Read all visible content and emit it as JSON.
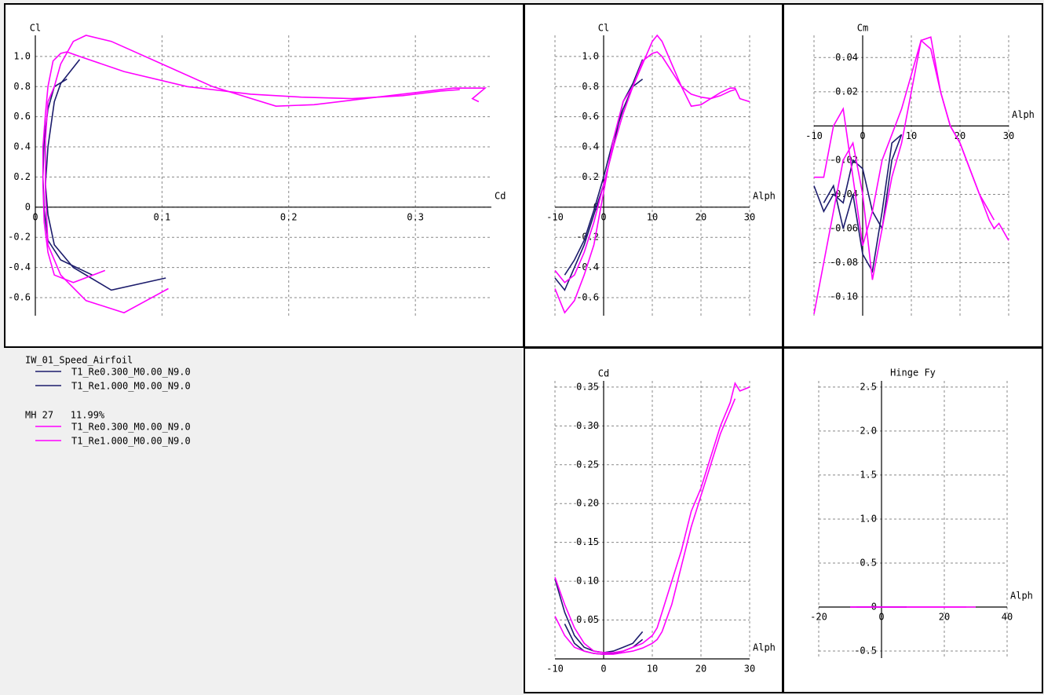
{
  "chart_data": [
    {
      "type": "line",
      "x_label": "Cd",
      "y_label": "Cl",
      "xlim": [
        0,
        0.36
      ],
      "ylim": [
        -0.72,
        1.14
      ],
      "xticks": [
        0,
        0.1,
        0.2,
        0.3
      ],
      "yticks": [
        {
          "value": 1,
          "label": "1.0"
        },
        0.8,
        0.6,
        0.4,
        0.2,
        0,
        -0.2,
        -0.4,
        -0.6
      ],
      "series": [
        {
          "color": "#1c1c6c",
          "x": [
            0.103,
            0.06,
            0.03,
            0.015,
            0.01,
            0.008,
            0.01,
            0.015,
            0.02,
            0.035
          ],
          "values": [
            -0.47,
            -0.55,
            -0.4,
            -0.25,
            -0.05,
            0.15,
            0.4,
            0.7,
            0.82,
            0.98
          ]
        },
        {
          "color": "#1c1c6c",
          "x": [
            0.045,
            0.02,
            0.01,
            0.007,
            0.006,
            0.007,
            0.01,
            0.015,
            0.025
          ],
          "values": [
            -0.45,
            -0.35,
            -0.22,
            -0.02,
            0.2,
            0.45,
            0.65,
            0.8,
            0.85
          ]
        },
        {
          "color": "#ff00ff",
          "x": [
            0.105,
            0.07,
            0.04,
            0.02,
            0.01,
            0.008,
            0.008,
            0.01,
            0.015,
            0.02,
            0.03,
            0.04,
            0.06,
            0.1,
            0.14,
            0.19,
            0.22,
            0.26,
            0.3,
            0.33,
            0.355,
            0.345,
            0.35
          ],
          "values": [
            -0.54,
            -0.7,
            -0.62,
            -0.45,
            -0.25,
            0.1,
            0.45,
            0.7,
            0.8,
            0.95,
            1.1,
            1.14,
            1.1,
            0.95,
            0.8,
            0.67,
            0.68,
            0.72,
            0.76,
            0.79,
            0.79,
            0.72,
            0.7
          ]
        },
        {
          "color": "#ff00ff",
          "x": [
            0.055,
            0.03,
            0.015,
            0.01,
            0.007,
            0.006,
            0.006,
            0.008,
            0.01,
            0.014,
            0.02,
            0.025,
            0.035,
            0.07,
            0.12,
            0.17,
            0.21,
            0.25,
            0.29,
            0.32,
            0.335
          ],
          "values": [
            -0.42,
            -0.5,
            -0.45,
            -0.3,
            -0.1,
            0.15,
            0.4,
            0.62,
            0.8,
            0.97,
            1.02,
            1.03,
            1.0,
            0.9,
            0.8,
            0.75,
            0.73,
            0.72,
            0.74,
            0.77,
            0.78
          ]
        }
      ]
    },
    {
      "type": "line",
      "x_label": "Alph",
      "y_label": "Cl",
      "xlim": [
        -10,
        30
      ],
      "ylim": [
        -0.72,
        1.14
      ],
      "xticks": [
        -10,
        0,
        10,
        20,
        30
      ],
      "yticks": [
        {
          "value": 1,
          "label": "1.0"
        },
        0.8,
        0.6,
        0.4,
        0.2,
        0,
        -0.2,
        -0.4,
        -0.6
      ],
      "series": [
        {
          "color": "#1c1c6c",
          "x": [
            -10,
            -8,
            -6,
            -4,
            -2,
            0,
            2,
            4,
            6,
            8
          ],
          "values": [
            -0.47,
            -0.55,
            -0.4,
            -0.25,
            -0.05,
            0.15,
            0.4,
            0.7,
            0.82,
            0.98
          ]
        },
        {
          "color": "#1c1c6c",
          "x": [
            -8,
            -6,
            -4,
            -2,
            0,
            2,
            4,
            6,
            8
          ],
          "values": [
            -0.45,
            -0.35,
            -0.22,
            -0.02,
            0.2,
            0.45,
            0.65,
            0.8,
            0.85
          ]
        },
        {
          "color": "#ff00ff",
          "x": [
            -10,
            -8,
            -6,
            -4,
            -2,
            0,
            2,
            4,
            6,
            8,
            10,
            11,
            12,
            14,
            16,
            18,
            20,
            22,
            24,
            26,
            27,
            28,
            30
          ],
          "values": [
            -0.54,
            -0.7,
            -0.62,
            -0.45,
            -0.25,
            0.1,
            0.45,
            0.7,
            0.8,
            0.95,
            1.1,
            1.14,
            1.1,
            0.95,
            0.8,
            0.67,
            0.68,
            0.72,
            0.76,
            0.79,
            0.79,
            0.72,
            0.7
          ]
        },
        {
          "color": "#ff00ff",
          "x": [
            -10,
            -8,
            -6,
            -4,
            -2,
            0,
            2,
            4,
            6,
            8,
            10,
            11,
            12,
            14,
            16,
            18,
            20,
            22,
            24,
            26,
            27
          ],
          "values": [
            -0.42,
            -0.5,
            -0.45,
            -0.3,
            -0.1,
            0.15,
            0.4,
            0.62,
            0.8,
            0.97,
            1.02,
            1.03,
            1.0,
            0.9,
            0.8,
            0.75,
            0.73,
            0.72,
            0.74,
            0.77,
            0.78
          ]
        }
      ]
    },
    {
      "type": "line",
      "x_label": "Alph",
      "y_label": "Cm",
      "xlim": [
        -10,
        30
      ],
      "ylim": [
        -0.111,
        0.053
      ],
      "xticks": [
        -10,
        0,
        10,
        20,
        30
      ],
      "yticks": [
        0.04,
        0.02,
        -0.02,
        -0.04,
        -0.06,
        -0.08,
        {
          "value": -0.1,
          "label": "-0.10"
        }
      ],
      "series": [
        {
          "color": "#1c1c6c",
          "x": [
            -10,
            -8,
            -6,
            -4,
            -2,
            0,
            2,
            4,
            6,
            8
          ],
          "values": [
            -0.035,
            -0.05,
            -0.04,
            -0.045,
            -0.02,
            -0.025,
            -0.05,
            -0.06,
            -0.02,
            -0.005
          ]
        },
        {
          "color": "#1c1c6c",
          "x": [
            -8,
            -6,
            -4,
            -2,
            0,
            2,
            4,
            6,
            8
          ],
          "values": [
            -0.045,
            -0.035,
            -0.06,
            -0.04,
            -0.075,
            -0.085,
            -0.05,
            -0.01,
            -0.005
          ]
        },
        {
          "color": "#ff00ff",
          "x": [
            -10,
            -8,
            -6,
            -4,
            -2,
            0,
            2,
            4,
            6,
            8,
            10,
            11,
            12,
            14,
            16,
            18,
            20,
            22,
            24,
            26,
            27,
            28,
            30
          ],
          "values": [
            -0.11,
            -0.08,
            -0.05,
            -0.02,
            -0.01,
            -0.04,
            -0.09,
            -0.06,
            -0.03,
            -0.01,
            0.02,
            0.035,
            0.05,
            0.052,
            0.02,
            0.0,
            -0.01,
            -0.025,
            -0.04,
            -0.055,
            -0.06,
            -0.057,
            -0.067
          ]
        },
        {
          "color": "#ff00ff",
          "x": [
            -10,
            -8,
            -6,
            -4,
            -2,
            0,
            2,
            4,
            6,
            8,
            10,
            11,
            12,
            14,
            16,
            18,
            20,
            22,
            24,
            26,
            27
          ],
          "values": [
            -0.03,
            -0.03,
            0.0,
            0.01,
            -0.03,
            -0.07,
            -0.05,
            -0.02,
            -0.005,
            0.01,
            0.03,
            0.04,
            0.05,
            0.045,
            0.02,
            0.0,
            -0.01,
            -0.025,
            -0.04,
            -0.05,
            -0.055
          ]
        }
      ]
    },
    {
      "type": "line",
      "x_label": "Alph",
      "y_label": "Cd",
      "xlim": [
        -10,
        30
      ],
      "ylim": [
        0,
        0.358
      ],
      "xticks": [
        -10,
        0,
        10,
        20,
        30
      ],
      "yticks": [
        0.05,
        {
          "value": 0.1,
          "label": "0.10"
        },
        0.15,
        {
          "value": 0.2,
          "label": "0.20"
        },
        0.25,
        {
          "value": 0.3,
          "label": "0.30"
        },
        0.35
      ],
      "series": [
        {
          "color": "#1c1c6c",
          "x": [
            -10,
            -8,
            -6,
            -4,
            -2,
            0,
            2,
            4,
            6,
            8
          ],
          "values": [
            0.103,
            0.06,
            0.03,
            0.015,
            0.01,
            0.008,
            0.01,
            0.015,
            0.02,
            0.035
          ]
        },
        {
          "color": "#1c1c6c",
          "x": [
            -8,
            -6,
            -4,
            -2,
            0,
            2,
            4,
            6,
            8
          ],
          "values": [
            0.045,
            0.02,
            0.01,
            0.007,
            0.006,
            0.007,
            0.01,
            0.015,
            0.025
          ]
        },
        {
          "color": "#ff00ff",
          "x": [
            -10,
            -8,
            -6,
            -4,
            -2,
            0,
            2,
            4,
            6,
            8,
            10,
            11,
            12,
            14,
            16,
            18,
            20,
            22,
            24,
            26,
            27,
            28,
            30
          ],
          "values": [
            0.105,
            0.07,
            0.04,
            0.02,
            0.01,
            0.008,
            0.008,
            0.01,
            0.015,
            0.02,
            0.03,
            0.04,
            0.06,
            0.1,
            0.14,
            0.19,
            0.22,
            0.26,
            0.3,
            0.33,
            0.355,
            0.345,
            0.35
          ]
        },
        {
          "color": "#ff00ff",
          "x": [
            -10,
            -8,
            -6,
            -4,
            -2,
            0,
            2,
            4,
            6,
            8,
            10,
            11,
            12,
            14,
            16,
            18,
            20,
            22,
            24,
            26,
            27
          ],
          "values": [
            0.055,
            0.03,
            0.015,
            0.01,
            0.007,
            0.006,
            0.006,
            0.008,
            0.01,
            0.014,
            0.02,
            0.025,
            0.035,
            0.07,
            0.12,
            0.17,
            0.21,
            0.25,
            0.29,
            0.32,
            0.335
          ]
        }
      ]
    },
    {
      "type": "line",
      "x_label": "Alph",
      "title": "Hinge Fy",
      "xlim": [
        -20,
        40
      ],
      "ylim": [
        -0.58,
        2.57
      ],
      "xticks": [
        -20,
        0,
        20,
        40
      ],
      "yticks": [
        2.5,
        {
          "value": 2,
          "label": "2.0"
        },
        1.5,
        {
          "value": 1,
          "label": "1.0"
        },
        0.5,
        0,
        -0.5
      ],
      "series": [
        {
          "color": "#1c1c6c",
          "x": [
            -10,
            8
          ],
          "values": [
            0,
            0
          ]
        },
        {
          "color": "#1c1c6c",
          "x": [
            -8,
            8
          ],
          "values": [
            0,
            0
          ]
        },
        {
          "color": "#ff00ff",
          "x": [
            -10,
            30
          ],
          "values": [
            0,
            0
          ]
        },
        {
          "color": "#ff00ff",
          "x": [
            -10,
            27
          ],
          "values": [
            0,
            0
          ]
        }
      ]
    }
  ],
  "legend": {
    "groups": [
      {
        "name": "IW_01_Speed_Airfoil",
        "entries": [
          {
            "name": "T1_Re0.300_M0.00_N9.0",
            "color": "#1c1c6c"
          },
          {
            "name": "T1_Re1.000_M0.00_N9.0",
            "color": "#1c1c6c"
          }
        ]
      },
      {
        "name": "MH 27   11.99%",
        "entries": [
          {
            "name": "T1_Re0.300_M0.00_N9.0",
            "color": "#ff00ff"
          },
          {
            "name": "T1_Re1.000_M0.00_N9.0",
            "color": "#ff00ff"
          }
        ]
      }
    ]
  }
}
